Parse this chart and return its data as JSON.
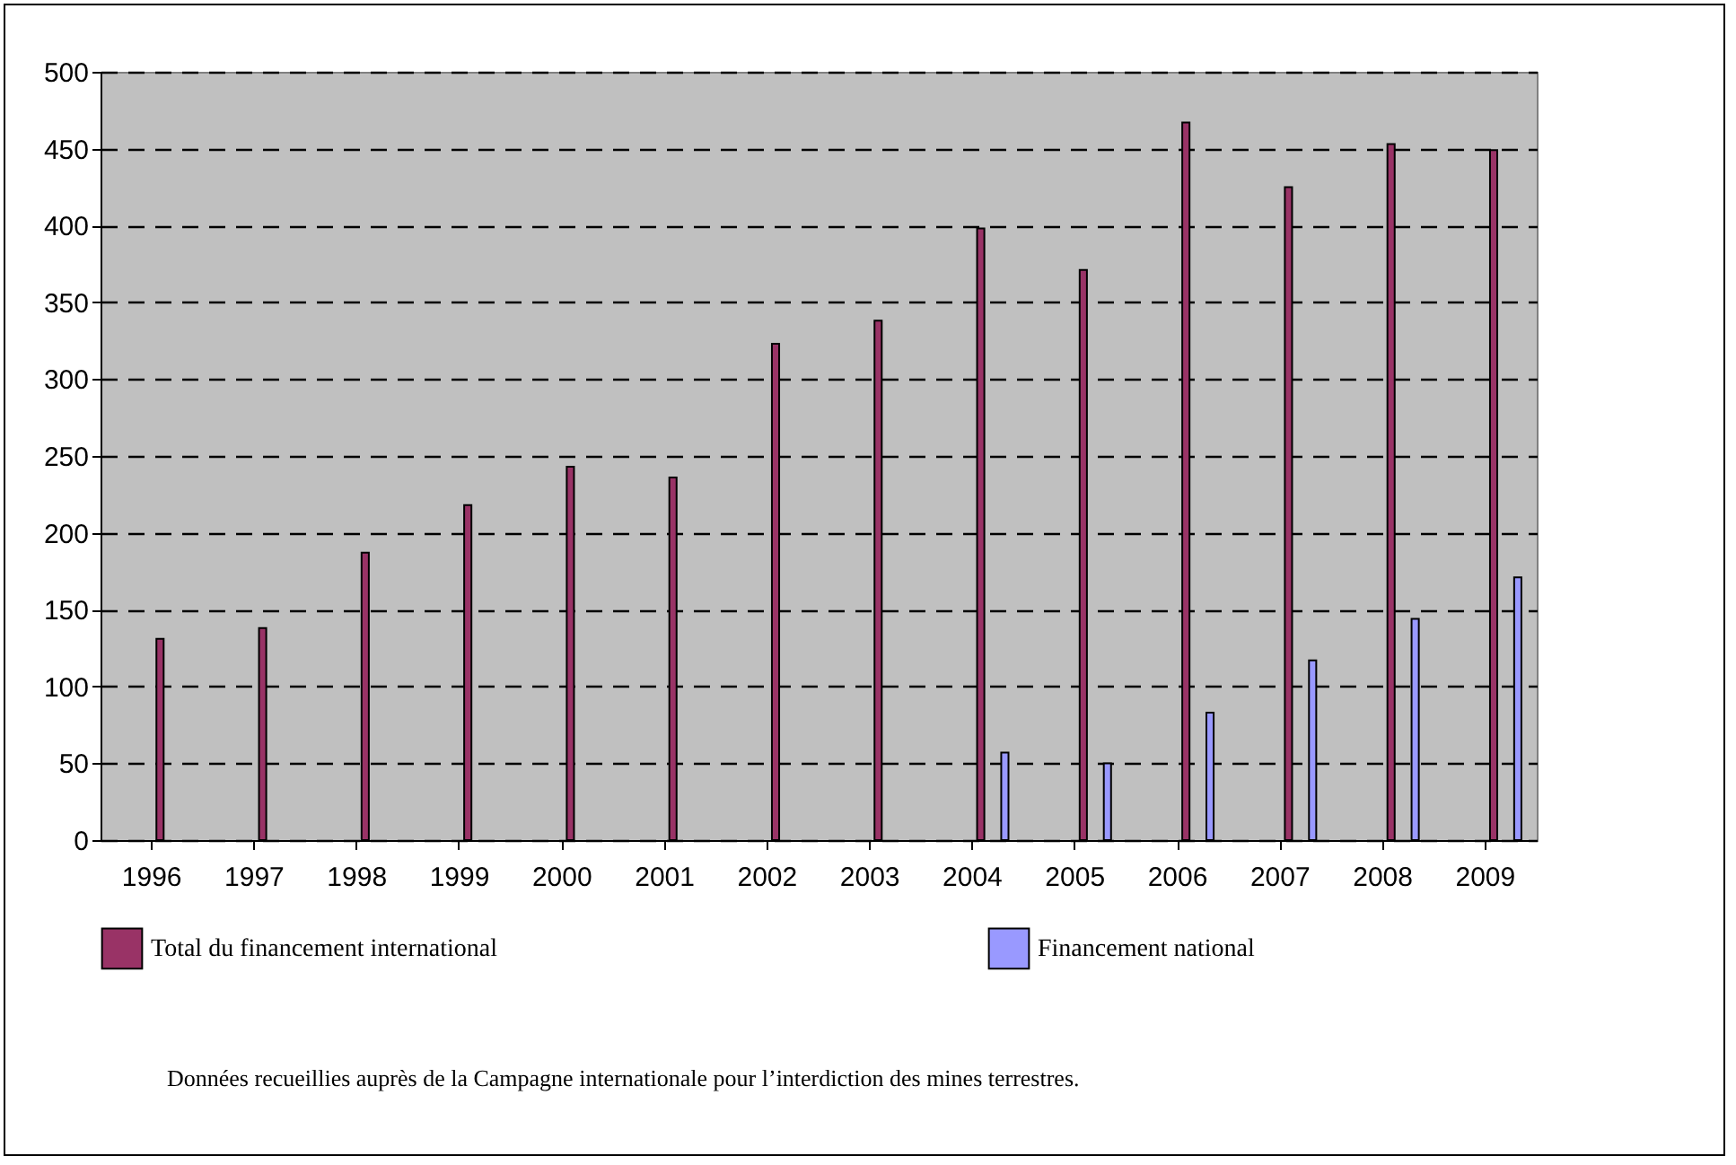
{
  "chart_data": {
    "type": "bar",
    "categories": [
      "1996",
      "1997",
      "1998",
      "1999",
      "2000",
      "2001",
      "2002",
      "2003",
      "2004",
      "2005",
      "2006",
      "2007",
      "2008",
      "2009"
    ],
    "series": [
      {
        "name": "Total du financement international",
        "color": "#993366",
        "values": [
          131,
          138,
          187,
          218,
          243,
          236,
          323,
          338,
          398,
          371,
          467,
          425,
          453,
          449
        ]
      },
      {
        "name": "Financement national",
        "color": "#9999ff",
        "values": [
          null,
          null,
          null,
          null,
          null,
          null,
          null,
          null,
          57,
          50,
          83,
          117,
          144,
          171
        ]
      }
    ],
    "ylim": [
      0,
      500
    ],
    "yticks": [
      0,
      50,
      100,
      150,
      200,
      250,
      300,
      350,
      400,
      450,
      500
    ],
    "grid": "y",
    "legend": "bottom",
    "annotations": [
      "Données recueillies auprès de la Campagne internationale pour l’interdiction des mines terrestres."
    ]
  }
}
